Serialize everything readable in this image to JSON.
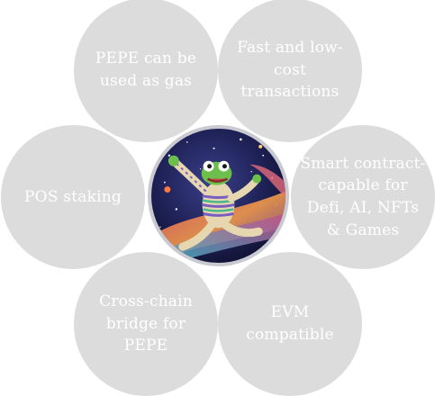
{
  "features": {
    "gas": "PEPE can be used as gas",
    "fast": "Fast and low-cost transactions",
    "pos": "POS staking",
    "smart": "Smart contract-capable for Defi, AI, NFTs & Games",
    "bridge": "Cross-chain bridge for PEPE",
    "evm": "EVM compatible"
  },
  "center": {
    "image_icon": "astronaut-frog-in-space-icon"
  },
  "colors": {
    "petal": "#dcdcdc",
    "petal_text": "#ffffff",
    "center_ring": "#c9c9d1",
    "space": "#1b1f4a"
  }
}
